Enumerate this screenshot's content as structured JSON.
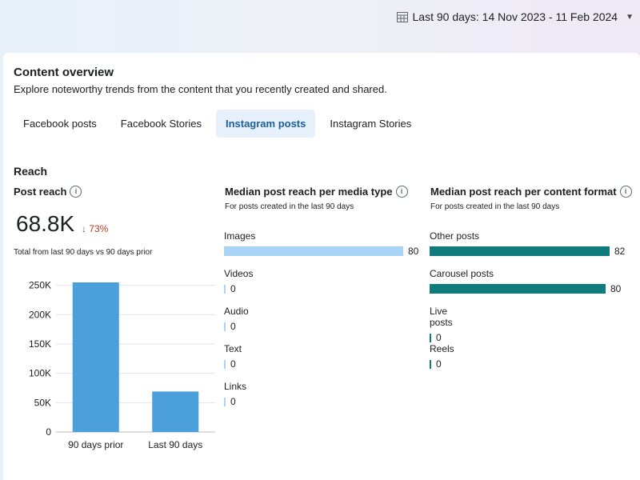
{
  "date_range": {
    "label": "Last 90 days: 14 Nov 2023 - 11 Feb 2024"
  },
  "header": {
    "title": "Content overview",
    "subtitle": "Explore noteworthy trends from the content that you recently created and shared."
  },
  "tabs": [
    {
      "label": "Facebook posts",
      "active": false
    },
    {
      "label": "Facebook Stories",
      "active": false
    },
    {
      "label": "Instagram posts",
      "active": true
    },
    {
      "label": "Instagram Stories",
      "active": false
    }
  ],
  "reach": {
    "section_title": "Reach",
    "post_reach": {
      "title": "Post reach",
      "value": "68.8K",
      "change": "↓ 73%",
      "note": "Total from last 90 days vs 90 days prior"
    },
    "media_type": {
      "title": "Median post reach per media type",
      "subtitle": "For posts created in the last 90 days",
      "bar_color": "#a8d4f5",
      "items": [
        {
          "label": "Images",
          "value": 80
        },
        {
          "label": "Videos",
          "value": 0
        },
        {
          "label": "Audio",
          "value": 0
        },
        {
          "label": "Text",
          "value": 0
        },
        {
          "label": "Links",
          "value": 0
        }
      ]
    },
    "content_format": {
      "title": "Median post reach per content format",
      "subtitle": "For posts created in the last 90 days",
      "bar_color": "#0f7b7c",
      "items": [
        {
          "label": "Other posts",
          "value": 82
        },
        {
          "label": "Carousel posts",
          "value": 80
        },
        {
          "label": "Live posts",
          "value": 0
        },
        {
          "label": "Reels",
          "value": 0
        }
      ]
    }
  },
  "chart_data": {
    "type": "bar",
    "categories": [
      "90 days prior",
      "Last 90 days"
    ],
    "values": [
      255000,
      69000
    ],
    "ylim": [
      0,
      250000
    ],
    "yticks": [
      "0",
      "50K",
      "100K",
      "150K",
      "200K",
      "250K"
    ],
    "ytick_values": [
      0,
      50000,
      100000,
      150000,
      200000,
      250000
    ],
    "color": "#4b9fdb",
    "grid": true
  }
}
